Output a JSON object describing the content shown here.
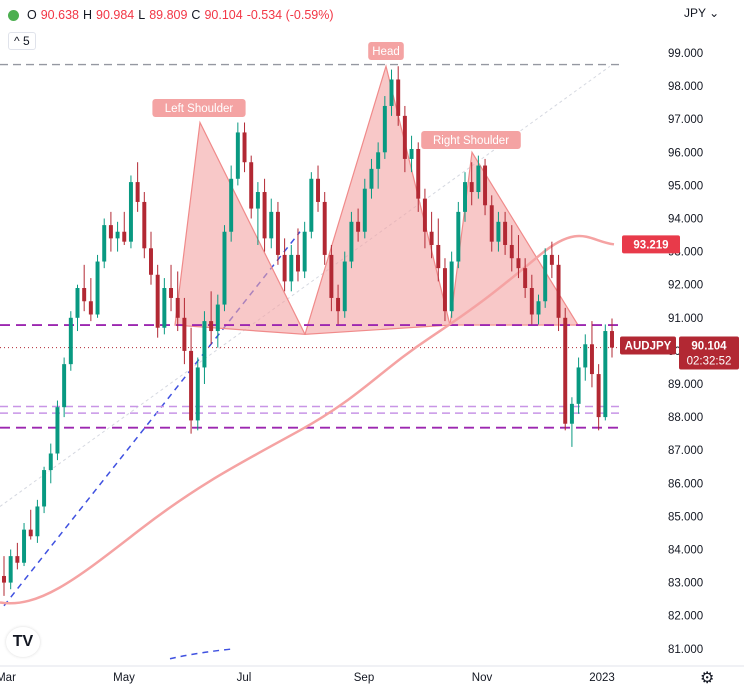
{
  "header": {
    "open_label": "O",
    "open": "90.638",
    "high_label": "H",
    "high": "90.984",
    "low_label": "L",
    "low": "89.809",
    "close_label": "C",
    "close": "90.104",
    "change": "-0.534 (-0.59%)",
    "interval": "5",
    "currency": "JPY"
  },
  "colors": {
    "up": "#089981",
    "down": "#b22833",
    "pattern_fill": "#f4a3a3",
    "ma_line": "#f5a3a3",
    "purple_line": "#9c27b0",
    "blue_line": "#3f51e0",
    "price_tag": "#b22833",
    "ma_tag": "#e83a4a"
  },
  "chart_data": {
    "type": "candlestick",
    "y_ticks": [
      "99.000",
      "98.000",
      "97.000",
      "96.000",
      "95.000",
      "94.000",
      "93.000",
      "92.000",
      "91.000",
      "90.000",
      "89.000",
      "88.000",
      "87.000",
      "86.000",
      "85.000",
      "84.000",
      "83.000",
      "82.000",
      "81.000"
    ],
    "ylim": [
      80.6,
      99.8
    ],
    "x_ticks": [
      "Mar",
      "May",
      "Jul",
      "Sep",
      "Nov",
      "2023"
    ],
    "symbol_label": "AUDJPY",
    "last_price": "90.104",
    "countdown": "02:32:52",
    "ma_value": "93.219",
    "annotations": [
      "Left Shoulder",
      "Head",
      "Right Shoulder"
    ],
    "horizontal_levels": [
      {
        "value": 98.65,
        "style": "gray-dashed"
      },
      {
        "value": 90.78,
        "style": "purple-dashed"
      },
      {
        "value": 90.1,
        "style": "dotted"
      },
      {
        "value": 88.32,
        "style": "light-purple-dashed"
      },
      {
        "value": 88.12,
        "style": "light-purple-dashed"
      },
      {
        "value": 87.68,
        "style": "purple-dashed"
      }
    ],
    "candles": [
      [
        83.2,
        83.8,
        82.6,
        83.0
      ],
      [
        83.0,
        84.0,
        82.8,
        83.8
      ],
      [
        83.8,
        84.2,
        83.4,
        83.6
      ],
      [
        83.6,
        84.8,
        83.5,
        84.6
      ],
      [
        84.6,
        85.2,
        84.3,
        84.4
      ],
      [
        84.4,
        85.5,
        84.2,
        85.3
      ],
      [
        85.3,
        86.5,
        85.1,
        86.4
      ],
      [
        86.4,
        87.2,
        86.0,
        86.9
      ],
      [
        86.9,
        88.5,
        86.7,
        88.3
      ],
      [
        88.3,
        89.8,
        88.0,
        89.6
      ],
      [
        89.6,
        91.2,
        89.4,
        91.0
      ],
      [
        91.0,
        92.0,
        90.6,
        91.9
      ],
      [
        91.9,
        92.6,
        91.2,
        91.5
      ],
      [
        91.5,
        92.2,
        90.9,
        91.1
      ],
      [
        91.1,
        92.9,
        91.0,
        92.7
      ],
      [
        92.7,
        94.0,
        92.5,
        93.8
      ],
      [
        93.8,
        94.2,
        93.0,
        93.4
      ],
      [
        93.4,
        93.9,
        93.0,
        93.6
      ],
      [
        93.6,
        94.2,
        93.2,
        93.3
      ],
      [
        93.3,
        95.3,
        93.1,
        95.1
      ],
      [
        95.1,
        95.7,
        94.2,
        94.5
      ],
      [
        94.5,
        94.8,
        92.8,
        93.1
      ],
      [
        93.1,
        93.6,
        92.0,
        92.3
      ],
      [
        92.3,
        92.6,
        90.4,
        90.7
      ],
      [
        90.7,
        92.2,
        90.5,
        91.9
      ],
      [
        91.9,
        92.6,
        91.2,
        91.6
      ],
      [
        91.6,
        92.4,
        90.6,
        91.0
      ],
      [
        91.0,
        91.6,
        89.6,
        90.0
      ],
      [
        90.0,
        90.7,
        87.5,
        87.9
      ],
      [
        87.9,
        89.8,
        87.6,
        89.5
      ],
      [
        89.5,
        91.2,
        89.0,
        90.9
      ],
      [
        90.9,
        91.8,
        90.2,
        90.6
      ],
      [
        90.6,
        91.7,
        90.1,
        91.4
      ],
      [
        91.4,
        93.8,
        91.2,
        93.6
      ],
      [
        93.6,
        95.6,
        93.3,
        95.2
      ],
      [
        95.2,
        96.9,
        95.0,
        96.6
      ],
      [
        96.6,
        96.9,
        95.4,
        95.7
      ],
      [
        95.7,
        95.9,
        94.0,
        94.3
      ],
      [
        94.3,
        95.1,
        93.2,
        94.8
      ],
      [
        94.8,
        95.2,
        93.0,
        93.4
      ],
      [
        93.4,
        94.6,
        93.1,
        94.2
      ],
      [
        94.2,
        94.5,
        92.6,
        92.9
      ],
      [
        92.9,
        93.4,
        91.8,
        92.1
      ],
      [
        92.1,
        93.2,
        91.8,
        92.9
      ],
      [
        92.9,
        93.7,
        92.1,
        92.4
      ],
      [
        92.4,
        93.9,
        92.2,
        93.6
      ],
      [
        93.6,
        95.4,
        93.4,
        95.2
      ],
      [
        95.2,
        95.6,
        94.2,
        94.5
      ],
      [
        94.5,
        94.8,
        92.6,
        92.9
      ],
      [
        92.9,
        93.2,
        91.2,
        91.6
      ],
      [
        91.6,
        92.0,
        90.8,
        91.2
      ],
      [
        91.2,
        93.0,
        91.0,
        92.7
      ],
      [
        92.7,
        94.2,
        92.5,
        93.9
      ],
      [
        93.9,
        94.3,
        93.3,
        93.6
      ],
      [
        93.6,
        95.2,
        93.4,
        94.9
      ],
      [
        94.9,
        95.8,
        94.6,
        95.5
      ],
      [
        95.5,
        96.3,
        94.9,
        96.0
      ],
      [
        96.0,
        97.7,
        95.8,
        97.4
      ],
      [
        97.4,
        98.5,
        97.1,
        98.2
      ],
      [
        98.2,
        98.6,
        96.8,
        97.1
      ],
      [
        97.1,
        97.4,
        95.4,
        95.8
      ],
      [
        95.8,
        96.5,
        95.4,
        96.1
      ],
      [
        96.1,
        96.3,
        94.2,
        94.6
      ],
      [
        94.6,
        94.9,
        93.1,
        93.6
      ],
      [
        93.6,
        94.2,
        92.8,
        93.2
      ],
      [
        93.2,
        94.0,
        92.1,
        92.5
      ],
      [
        92.5,
        92.8,
        90.9,
        91.2
      ],
      [
        91.2,
        93.0,
        91.0,
        92.7
      ],
      [
        92.7,
        94.5,
        92.5,
        94.2
      ],
      [
        94.2,
        95.4,
        93.9,
        95.1
      ],
      [
        95.1,
        95.7,
        94.4,
        94.8
      ],
      [
        94.8,
        95.9,
        94.6,
        95.6
      ],
      [
        95.6,
        95.8,
        94.1,
        94.4
      ],
      [
        94.4,
        94.7,
        93.0,
        93.3
      ],
      [
        93.3,
        94.2,
        93.0,
        93.9
      ],
      [
        93.9,
        94.2,
        92.9,
        93.2
      ],
      [
        93.2,
        93.8,
        92.4,
        92.8
      ],
      [
        92.8,
        93.5,
        92.2,
        92.5
      ],
      [
        92.5,
        92.8,
        91.6,
        91.9
      ],
      [
        91.9,
        92.3,
        90.8,
        91.1
      ],
      [
        91.1,
        91.7,
        90.8,
        91.5
      ],
      [
        91.5,
        93.1,
        91.3,
        92.9
      ],
      [
        92.9,
        93.3,
        92.2,
        92.6
      ],
      [
        92.6,
        92.9,
        90.6,
        91.0
      ],
      [
        91.0,
        91.3,
        87.6,
        87.8
      ],
      [
        87.8,
        88.6,
        87.1,
        88.4
      ],
      [
        88.4,
        89.8,
        88.1,
        89.5
      ],
      [
        89.5,
        90.5,
        89.1,
        90.2
      ],
      [
        90.2,
        90.9,
        88.9,
        89.3
      ],
      [
        89.3,
        89.6,
        87.6,
        88.0
      ],
      [
        88.0,
        90.8,
        87.9,
        90.6
      ],
      [
        90.6,
        90.98,
        89.8,
        90.1
      ]
    ]
  }
}
